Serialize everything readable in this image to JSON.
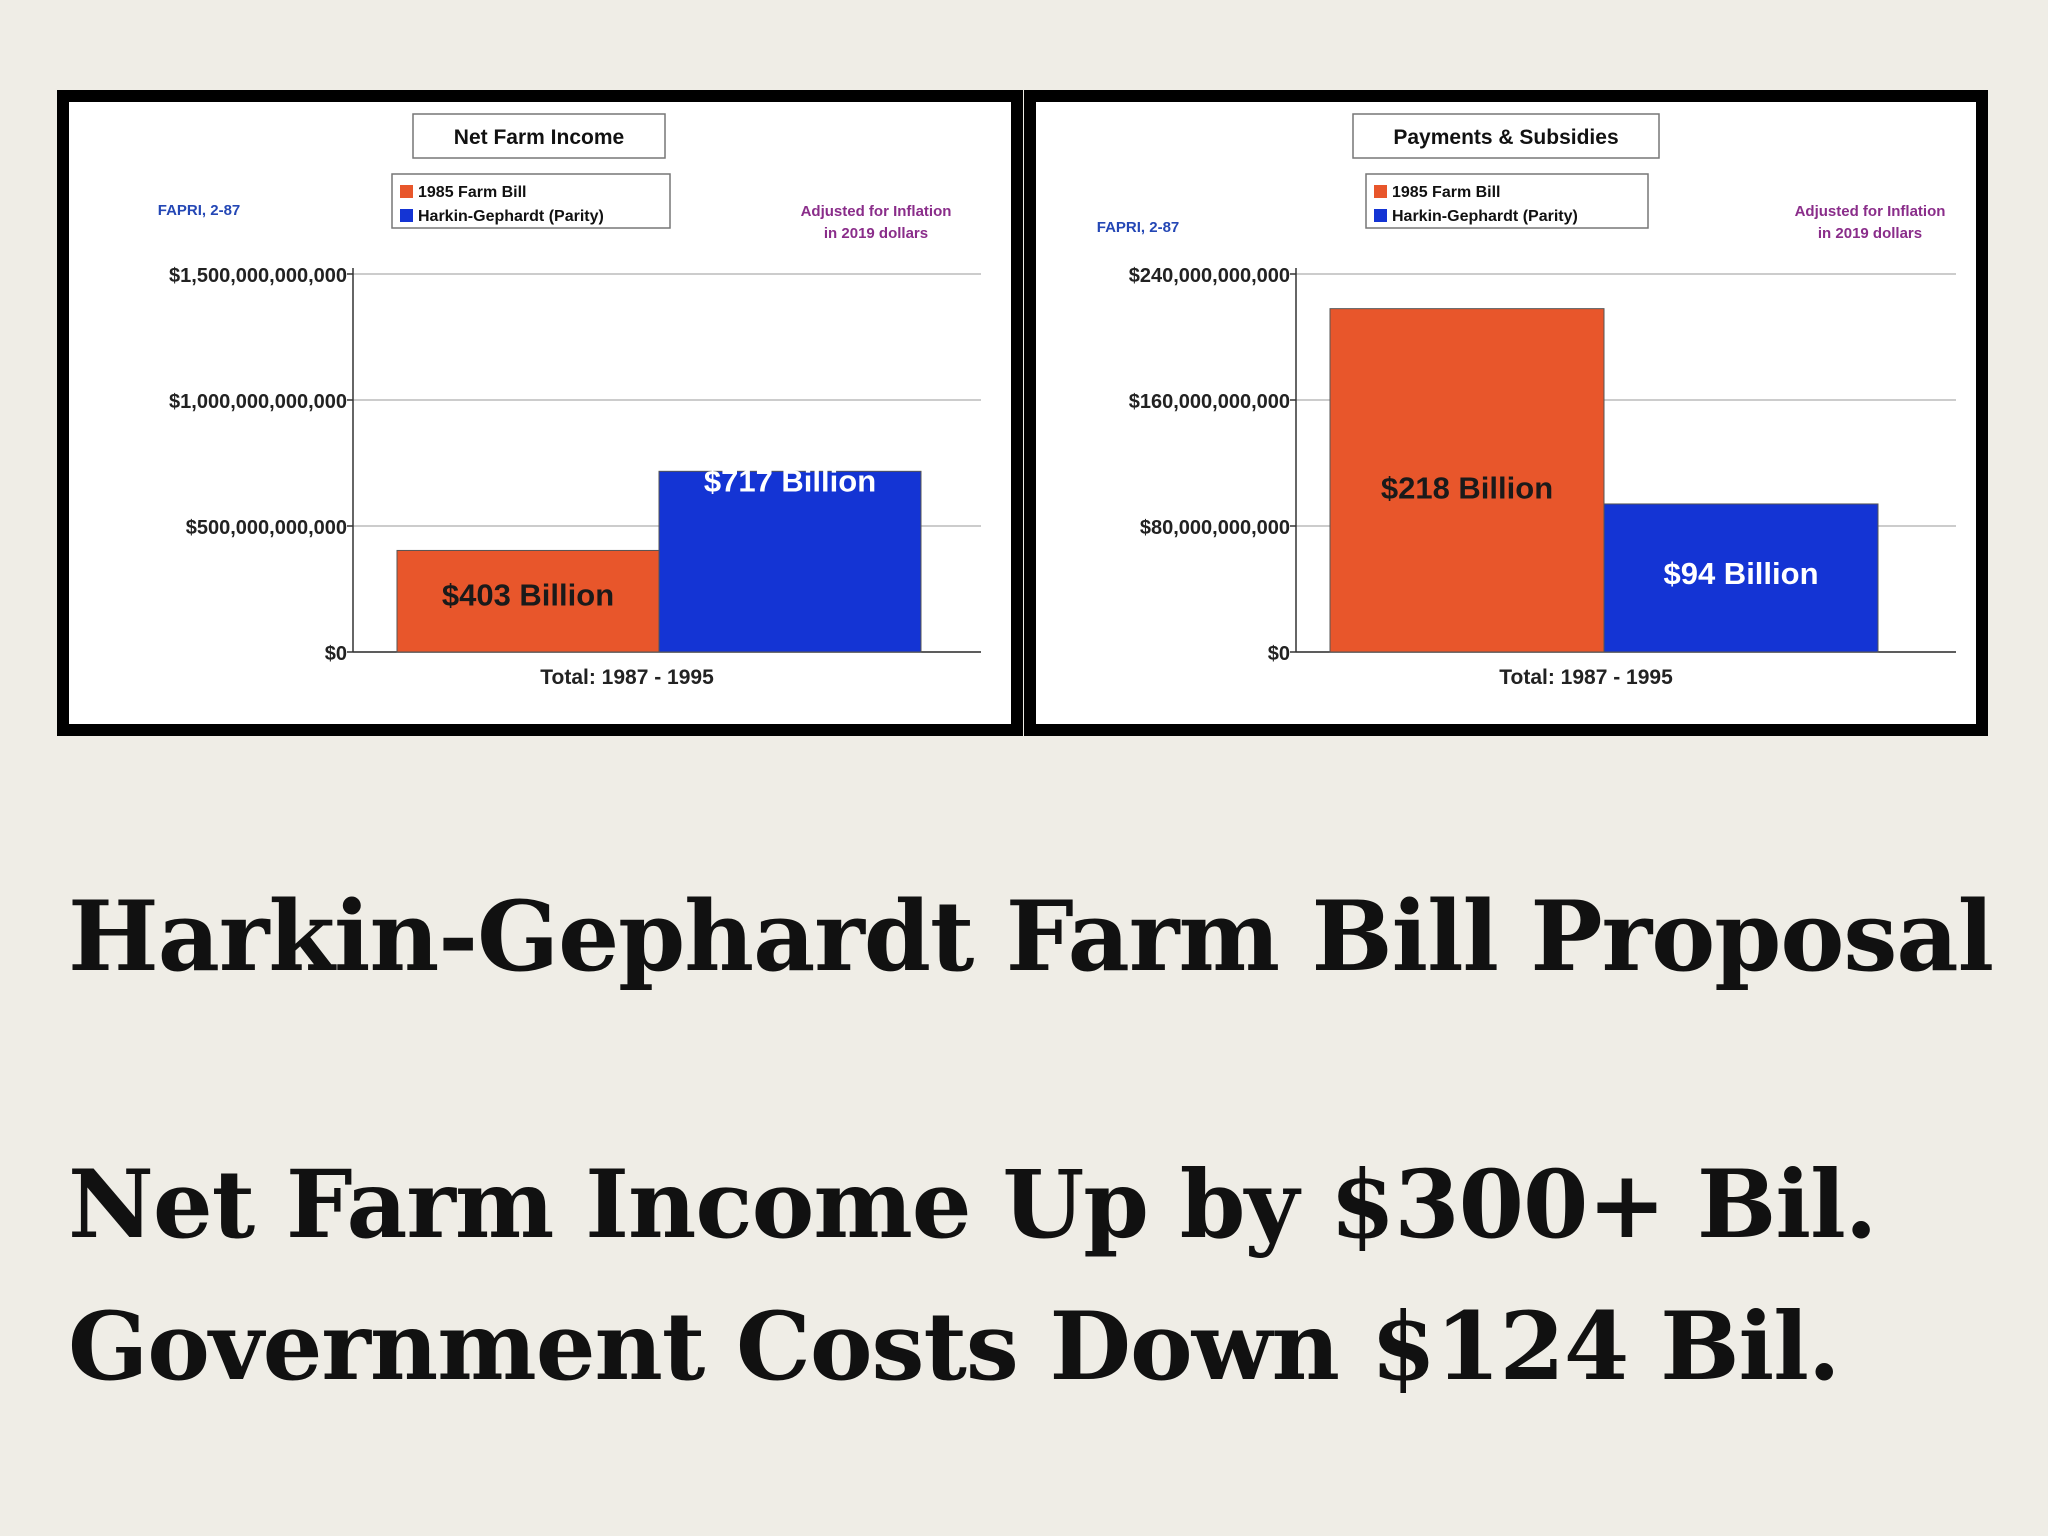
{
  "colors": {
    "background": "#efede6",
    "series_1985": "#e8562b",
    "series_harkin": "#1434d4",
    "source_text": "#2447b5",
    "note_text": "#8a2d8a",
    "grid": "#bbbbbb"
  },
  "headline": {
    "title": "Harkin-Gephardt Farm Bill Proposal",
    "line1": "Net Farm Income Up by $300+ Bil.",
    "line2": "Government Costs Down $124 Bil."
  },
  "chart_data": [
    {
      "type": "bar",
      "title": "Net Farm Income",
      "source": "FAPRI, 2-87",
      "note": [
        "Adjusted for Inflation",
        "in 2019 dollars"
      ],
      "legend": [
        "1985 Farm Bill",
        "Harkin-Gephardt (Parity)"
      ],
      "legend_position": "top-center",
      "xlabel": "Total:  1987 - 1995",
      "ylim": [
        0,
        1500000000000
      ],
      "ytick_values": [
        0,
        500000000000,
        1000000000000,
        1500000000000
      ],
      "ytick_labels": [
        "$0",
        "$500,000,000,000",
        "$1,000,000,000,000",
        "$1,500,000,000,000"
      ],
      "grid": true,
      "series": [
        {
          "name": "1985 Farm Bill",
          "value": 403000000000,
          "label": "$403 Billion",
          "color": "#e8562b"
        },
        {
          "name": "Harkin-Gephardt (Parity)",
          "value": 717000000000,
          "label": "$717 Billion",
          "color": "#1434d4"
        }
      ]
    },
    {
      "type": "bar",
      "title": "Payments & Subsidies",
      "source": "FAPRI, 2-87",
      "note": [
        "Adjusted for Inflation",
        "in 2019 dollars"
      ],
      "legend": [
        "1985 Farm Bill",
        "Harkin-Gephardt (Parity)"
      ],
      "legend_position": "top-center",
      "xlabel": "Total:  1987 - 1995",
      "ylim": [
        0,
        240000000000
      ],
      "ytick_values": [
        0,
        80000000000,
        160000000000,
        240000000000
      ],
      "ytick_labels": [
        "$0",
        "$80,000,000,000",
        "$160,000,000,000",
        "$240,000,000,000"
      ],
      "grid": true,
      "series": [
        {
          "name": "1985 Farm Bill",
          "value": 218000000000,
          "label": "$218 Billion",
          "color": "#e8562b"
        },
        {
          "name": "Harkin-Gephardt (Parity)",
          "value": 94000000000,
          "label": "$94 Billion",
          "color": "#1434d4"
        }
      ]
    }
  ]
}
